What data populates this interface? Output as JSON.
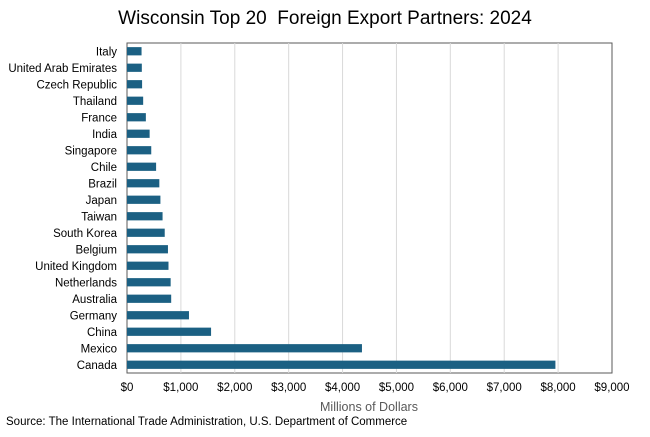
{
  "chart_data": {
    "type": "bar",
    "orientation": "horizontal",
    "title": "Wisconsin Top 20  Foreign Export Partners: 2024",
    "xlabel": "Millions of Dollars",
    "ylabel": "",
    "categories": [
      "Italy",
      "United Arab Emirates",
      "Czech Republic",
      "Thailand",
      "France",
      "India",
      "Singapore",
      "Chile",
      "Brazil",
      "Japan",
      "Taiwan",
      "South Korea",
      "Belgium",
      "United Kingdom",
      "Netherlands",
      "Australia",
      "Germany",
      "China",
      "Mexico",
      "Canada"
    ],
    "values": [
      270,
      275,
      280,
      300,
      350,
      420,
      450,
      540,
      600,
      620,
      660,
      700,
      760,
      770,
      810,
      820,
      1150,
      1560,
      4360,
      7950
    ],
    "xlim": [
      0,
      9000
    ],
    "xticks": [
      0,
      1000,
      2000,
      3000,
      4000,
      5000,
      6000,
      7000,
      8000,
      9000
    ],
    "xtick_labels": [
      "$0",
      "$1,000",
      "$2,000",
      "$3,000",
      "$4,000",
      "$5,000",
      "$6,000",
      "$7,000",
      "$8,000",
      "$9,000"
    ],
    "grid": true,
    "bar_color": "#1B6083",
    "grid_color": "#D9D9D9",
    "source": "Source: The International Trade Administration, U.S. Department of Commerce"
  }
}
